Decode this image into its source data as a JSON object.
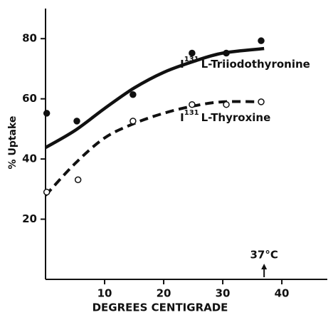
{
  "chart_data": {
    "type": "scatter",
    "x_label": "DEGREES CENTIGRADE",
    "y_label": "% Uptake",
    "xlim": [
      0,
      47.7
    ],
    "ylim": [
      0,
      90
    ],
    "xticks": [
      10,
      20,
      30,
      40
    ],
    "yticks": [
      20,
      40,
      60,
      80
    ],
    "series": [
      {
        "name": {
          "element": "I",
          "isotope": "131",
          "text": "L-Triiodothyronine"
        },
        "color": "#111111",
        "marker": "filled",
        "line_style": "solid",
        "x": [
          0.2,
          5.3,
          14.8,
          24.8,
          30.6,
          36.5
        ],
        "values": [
          55.2,
          52.6,
          61.4,
          75.2,
          75.2,
          79.3
        ],
        "curve_x": [
          0,
          5,
          10,
          15,
          20,
          25,
          30,
          37
        ],
        "curve_values": [
          43.8,
          49.5,
          56.8,
          63.6,
          68.8,
          72.4,
          75.2,
          76.7
        ]
      },
      {
        "name": {
          "element": "I",
          "isotope": "131",
          "text": "L-Thyroxine"
        },
        "color": "#111111",
        "marker": "open",
        "line_style": "dashed",
        "x": [
          0.2,
          5.5,
          14.8,
          24.8,
          30.6,
          36.5
        ],
        "values": [
          29,
          33.1,
          52.6,
          58.1,
          58.1,
          59
        ],
        "curve_x": [
          0,
          5,
          10,
          15,
          20,
          25,
          30,
          37
        ],
        "curve_values": [
          27.9,
          38.5,
          47,
          51.8,
          55.2,
          57.6,
          59,
          59
        ]
      }
    ],
    "annotation": {
      "text": "37°C",
      "x": 37
    }
  }
}
